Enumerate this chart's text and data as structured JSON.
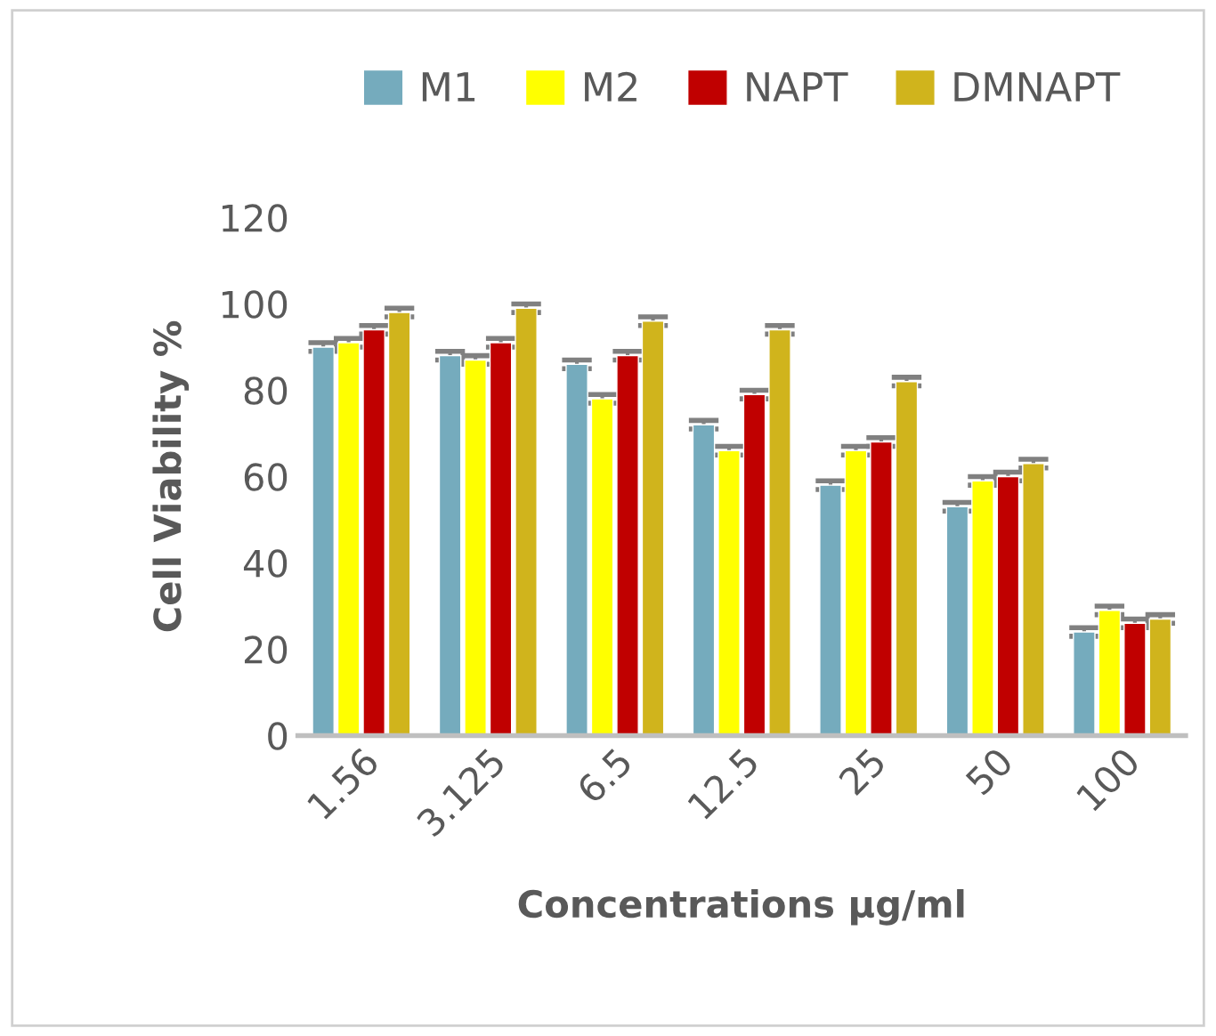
{
  "chart_data": {
    "type": "bar",
    "xlabel": "Concentrations µg/ml",
    "ylabel": "Cell Viability %",
    "categories": [
      "1.56",
      "3.125",
      "6.5",
      "12.5",
      "25",
      "50",
      "100"
    ],
    "series": [
      {
        "name": "M1",
        "color": "#75abbd",
        "values": [
          90,
          88,
          86,
          72,
          58,
          53,
          24
        ],
        "errors": [
          1,
          1,
          1,
          1,
          1,
          1,
          1
        ]
      },
      {
        "name": "M2",
        "color": "#ffff00",
        "values": [
          91,
          87,
          78,
          66,
          66,
          59,
          29
        ],
        "errors": [
          1,
          1,
          1,
          1,
          1,
          1,
          1
        ]
      },
      {
        "name": "NAPT",
        "color": "#c00000",
        "values": [
          94,
          91,
          88,
          79,
          68,
          60,
          26
        ],
        "errors": [
          1,
          1,
          1,
          1,
          1,
          1,
          1
        ]
      },
      {
        "name": "DMNAPT",
        "color": "#d0b41c",
        "values": [
          98,
          99,
          96,
          94,
          82,
          63,
          27
        ],
        "errors": [
          1,
          1,
          1,
          1,
          1,
          1,
          1
        ]
      }
    ],
    "ylim": [
      0,
      120
    ],
    "yticks": [
      0,
      20,
      40,
      60,
      80,
      100,
      120
    ],
    "grid": false,
    "legend": "top"
  }
}
